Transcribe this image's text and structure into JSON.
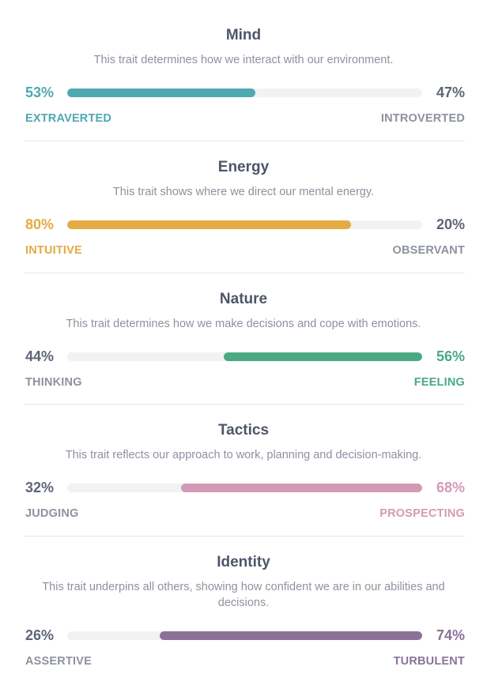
{
  "traits": [
    {
      "title": "Mind",
      "description": "This trait determines how we interact with our environment.",
      "left_pct": "53%",
      "right_pct": "47%",
      "left_label": "EXTRAVERTED",
      "right_label": "INTROVERTED",
      "dominant": "left",
      "dominant_fraction": 0.53,
      "color": "#4fa9b0"
    },
    {
      "title": "Energy",
      "description": "This trait shows where we direct our mental energy.",
      "left_pct": "80%",
      "right_pct": "20%",
      "left_label": "INTUITIVE",
      "right_label": "OBSERVANT",
      "dominant": "left",
      "dominant_fraction": 0.8,
      "color": "#e3ab42"
    },
    {
      "title": "Nature",
      "description": "This trait determines how we make decisions and cope with emotions.",
      "left_pct": "44%",
      "right_pct": "56%",
      "left_label": "THINKING",
      "right_label": "FEELING",
      "dominant": "right",
      "dominant_fraction": 0.56,
      "color": "#4aa984"
    },
    {
      "title": "Tactics",
      "description": "This trait reflects our approach to work, planning and decision-making.",
      "left_pct": "32%",
      "right_pct": "68%",
      "left_label": "JUDGING",
      "right_label": "PROSPECTING",
      "dominant": "right",
      "dominant_fraction": 0.68,
      "color": "#d29ab5"
    },
    {
      "title": "Identity",
      "description": "This trait underpins all others, showing how confident we are in our abilities and decisions.",
      "left_pct": "26%",
      "right_pct": "74%",
      "left_label": "ASSERTIVE",
      "right_label": "TURBULENT",
      "dominant": "right",
      "dominant_fraction": 0.74,
      "color": "#8c7298"
    }
  ]
}
